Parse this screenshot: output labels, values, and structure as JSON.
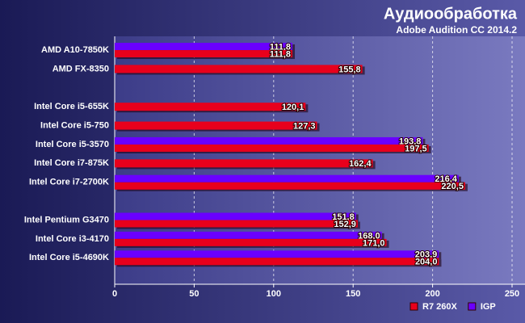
{
  "chart_data": {
    "type": "hbar",
    "title": "Аудиообработка",
    "subtitle": "Adobe Audition CC 2014.2",
    "categories": [
      "AMD A10-7850K",
      "AMD FX-8350",
      null,
      "Intel Core i5-655K",
      "Intel Core i5-750",
      "Intel Core i5-3570",
      "Intel Core i7-875K",
      "Intel Core i7-2700K",
      null,
      "Intel Pentium G3470",
      "Intel Core i3-4170",
      "Intel Core i5-4690K"
    ],
    "series": [
      {
        "name": "R7 260X",
        "color": "#e8001c",
        "values": [
          111.8,
          155.8,
          null,
          120.1,
          127.3,
          197.5,
          162.4,
          220.5,
          null,
          152.9,
          171.0,
          204.0
        ],
        "value_labels": [
          "111,8",
          "155,8",
          null,
          "120,1",
          "127,3",
          "197,5",
          "162,4",
          "220,5",
          null,
          "152,9",
          "171,0",
          "204,0"
        ]
      },
      {
        "name": "IGP",
        "color": "#6a00ff",
        "values": [
          111.8,
          null,
          null,
          null,
          null,
          193.8,
          null,
          216.4,
          null,
          151.8,
          168.0,
          203.9
        ],
        "value_labels": [
          "111,8",
          null,
          null,
          null,
          null,
          "193,8",
          null,
          "216,4",
          null,
          "151,8",
          "168,0",
          "203,9"
        ]
      }
    ],
    "xlim": [
      0,
      250
    ],
    "xticks": [
      0,
      50,
      100,
      150,
      200,
      250
    ],
    "grid": true,
    "legend": "bottom-right"
  }
}
